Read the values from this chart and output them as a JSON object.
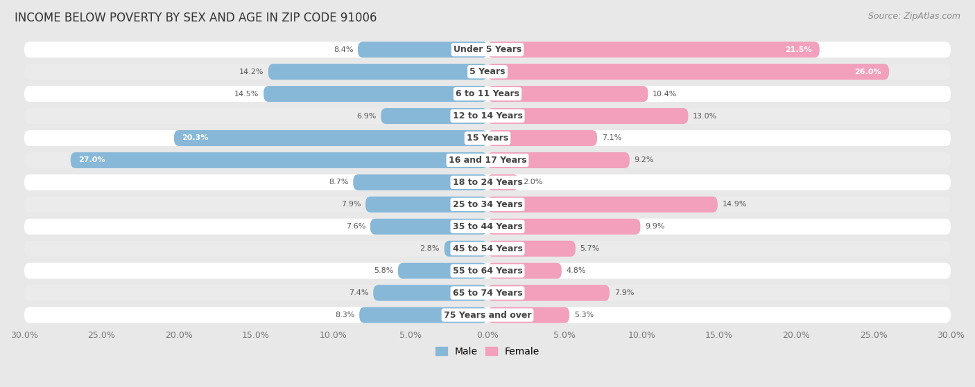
{
  "title": "INCOME BELOW POVERTY BY SEX AND AGE IN ZIP CODE 91006",
  "source": "Source: ZipAtlas.com",
  "categories": [
    "Under 5 Years",
    "5 Years",
    "6 to 11 Years",
    "12 to 14 Years",
    "15 Years",
    "16 and 17 Years",
    "18 to 24 Years",
    "25 to 34 Years",
    "35 to 44 Years",
    "45 to 54 Years",
    "55 to 64 Years",
    "65 to 74 Years",
    "75 Years and over"
  ],
  "male_values": [
    8.4,
    14.2,
    14.5,
    6.9,
    20.3,
    27.0,
    8.7,
    7.9,
    7.6,
    2.8,
    5.8,
    7.4,
    8.3
  ],
  "female_values": [
    21.5,
    26.0,
    10.4,
    13.0,
    7.1,
    9.2,
    2.0,
    14.9,
    9.9,
    5.7,
    4.8,
    7.9,
    5.3
  ],
  "male_color": "#88b8d8",
  "female_color": "#f2a0bc",
  "male_label": "Male",
  "female_label": "Female",
  "xlim": 30.0,
  "row_color_even": "#f5f5f5",
  "row_color_odd": "#e8e8e8",
  "background_color": "#e8e8e8",
  "title_fontsize": 12,
  "source_fontsize": 9,
  "axis_label_fontsize": 9,
  "legend_fontsize": 10,
  "bar_label_fontsize": 8,
  "category_fontsize": 9
}
